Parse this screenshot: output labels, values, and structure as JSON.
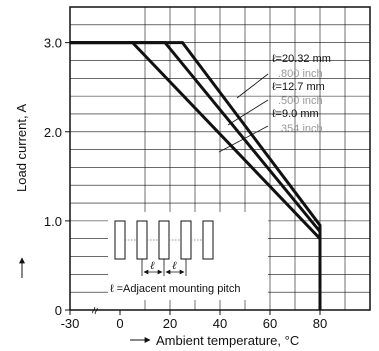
{
  "chart_data": {
    "type": "line",
    "title": "",
    "xlabel": "Ambient temperature, °C",
    "ylabel": "Load current, A",
    "xlim": [
      -30,
      100
    ],
    "ylim": [
      0,
      3.4
    ],
    "x_ticks": [
      {
        "value": -30,
        "label": "-30"
      },
      {
        "value": 0,
        "label": "0"
      },
      {
        "value": 20,
        "label": "20"
      },
      {
        "value": 40,
        "label": "40"
      },
      {
        "value": 60,
        "label": "60"
      },
      {
        "value": 80,
        "label": "80"
      }
    ],
    "y_ticks": [
      {
        "value": 0,
        "label": "0"
      },
      {
        "value": 1.0,
        "label": "1.0"
      },
      {
        "value": 2.0,
        "label": "2.0"
      },
      {
        "value": 3.0,
        "label": "3.0"
      }
    ],
    "grid": true,
    "series": [
      {
        "name": "ℓ=20.32 mm",
        "sub": ".800 inch",
        "points": [
          [
            -30,
            3.0
          ],
          [
            25,
            3.0
          ],
          [
            80,
            0.95
          ],
          [
            80,
            0
          ]
        ]
      },
      {
        "name": "ℓ=12.7 mm",
        "sub": ".500 inch",
        "points": [
          [
            -30,
            3.0
          ],
          [
            18,
            3.0
          ],
          [
            80,
            0.88
          ],
          [
            80,
            0
          ]
        ]
      },
      {
        "name": "ℓ=9.0 mm",
        "sub": ".354 inch",
        "points": [
          [
            -30,
            3.0
          ],
          [
            5,
            3.0
          ],
          [
            80,
            0.8
          ],
          [
            80,
            0
          ]
        ]
      }
    ],
    "inset_note": "ℓ =Adjacent mounting pitch",
    "pitch_symbol": "ℓ",
    "axis_break_symbol": "≈"
  }
}
